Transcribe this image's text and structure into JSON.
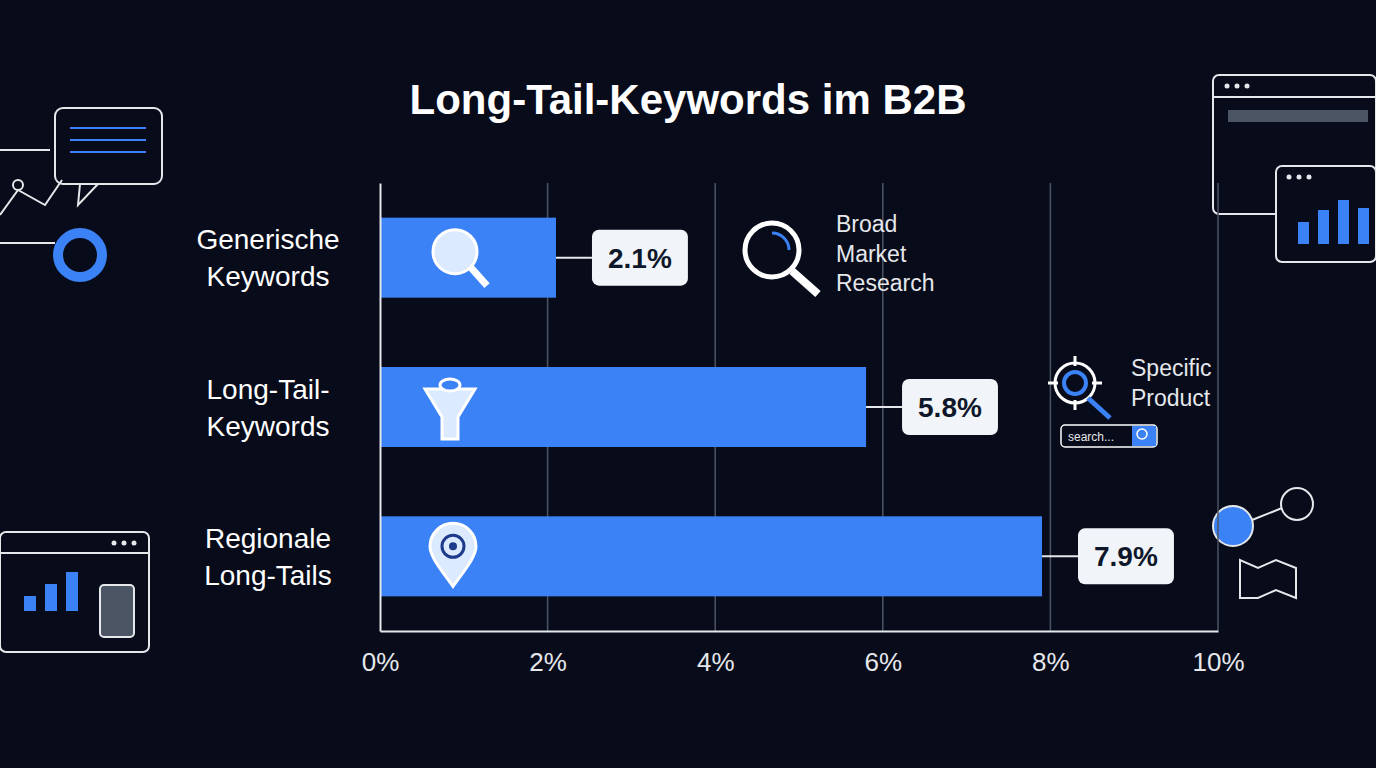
{
  "chart_data": {
    "type": "bar",
    "orientation": "horizontal",
    "title": "Long-Tail-Keywords im B2B",
    "categories": [
      "Generische Keywords",
      "Long-Tail-Keywords",
      "Regionale Long-Tails"
    ],
    "values": [
      2.1,
      5.8,
      7.9
    ],
    "value_labels": [
      "2.1%",
      "5.8%",
      "7.9%"
    ],
    "color": "#3b82f6",
    "xlim": [
      0,
      10
    ],
    "xticks": [
      {
        "value": 0,
        "label": "0%"
      },
      {
        "value": 2,
        "label": "2%"
      },
      {
        "value": 4,
        "label": "4%"
      },
      {
        "value": 6,
        "label": "6%"
      },
      {
        "value": 8,
        "label": "8%"
      },
      {
        "value": 10,
        "label": "10%"
      }
    ],
    "grid": true,
    "data_labels": true,
    "annotations": [
      "Broad Market Research",
      "Specific Product",
      "search..."
    ]
  }
}
